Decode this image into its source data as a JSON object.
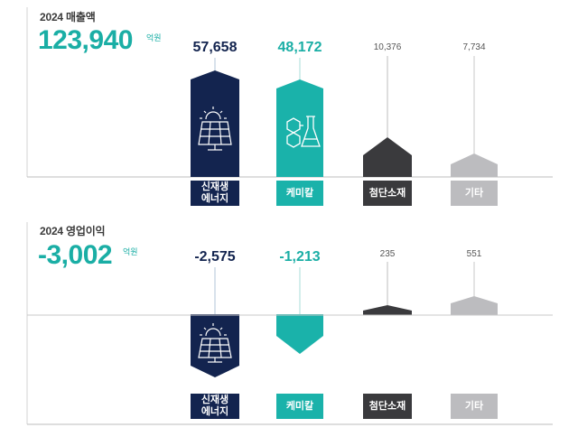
{
  "colors": {
    "energy": "#13244f",
    "chemical": "#1ab2aa",
    "advanced": "#3a3a3d",
    "other": "#bcbcbf",
    "accent": "#1aaea5"
  },
  "revenue": {
    "title": "2024 매출액",
    "total": "123,940",
    "unit": "억원",
    "values_text": [
      "57,658",
      "48,172",
      "10,376",
      "7,734"
    ]
  },
  "profit": {
    "title": "2024 영업이익",
    "total": "-3,002",
    "unit": "억원",
    "values_text": [
      "-2,575",
      "-1,213",
      "235",
      "551"
    ]
  },
  "categories": {
    "energy_line1": "신재생",
    "energy_line2": "에너지",
    "chemical": "케미칼",
    "advanced": "첨단소재",
    "other": "기타"
  },
  "chart_data": [
    {
      "type": "bar",
      "title": "2024 매출액",
      "unit": "억원",
      "total": 123940,
      "categories": [
        "신재생 에너지",
        "케미칼",
        "첨단소재",
        "기타"
      ],
      "values": [
        57658,
        48172,
        10376,
        7734
      ]
    },
    {
      "type": "bar",
      "title": "2024 영업이익",
      "unit": "억원",
      "total": -3002,
      "categories": [
        "신재생 에너지",
        "케미칼",
        "첨단소재",
        "기타"
      ],
      "values": [
        -2575,
        -1213,
        235,
        551
      ]
    }
  ]
}
